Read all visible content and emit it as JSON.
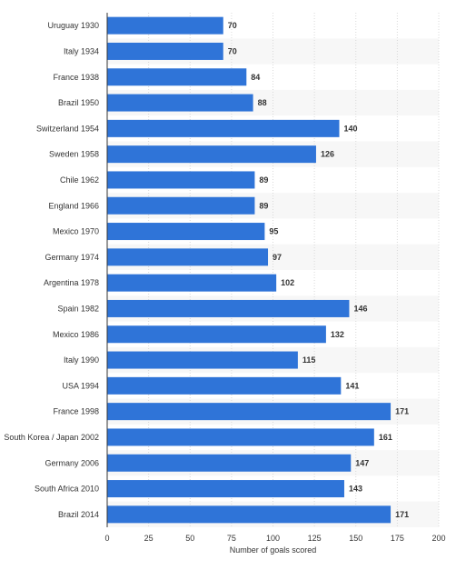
{
  "chart_data": {
    "type": "bar",
    "orientation": "horizontal",
    "categories": [
      "Uruguay 1930",
      "Italy 1934",
      "France 1938",
      "Brazil 1950",
      "Switzerland 1954",
      "Sweden 1958",
      "Chile 1962",
      "England 1966",
      "Mexico 1970",
      "Germany 1974",
      "Argentina 1978",
      "Spain 1982",
      "Mexico 1986",
      "Italy 1990",
      "USA 1994",
      "France 1998",
      "South Korea / Japan 2002",
      "Germany 2006",
      "South Africa 2010",
      "Brazil 2014"
    ],
    "values": [
      70,
      70,
      84,
      88,
      140,
      126,
      89,
      89,
      95,
      97,
      102,
      146,
      132,
      115,
      141,
      171,
      161,
      147,
      143,
      171
    ],
    "xlabel": "Number of goals scored",
    "ylabel": "",
    "xlim": [
      0,
      200
    ],
    "xticks": [
      0,
      25,
      50,
      75,
      100,
      125,
      150,
      175,
      200
    ],
    "grid": true,
    "legend": "none",
    "colors": {
      "bar": "#2f74d8",
      "band": "#f7f7f7",
      "grid": "#d9d9d9"
    }
  }
}
